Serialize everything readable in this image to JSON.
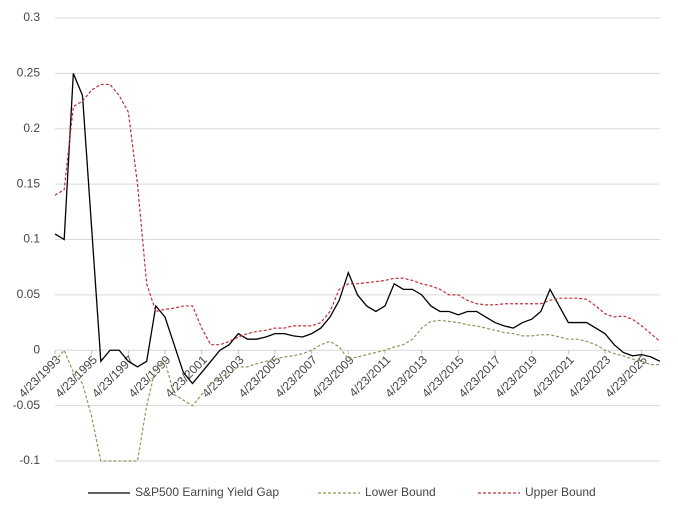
{
  "chart_data": {
    "type": "line",
    "x": [
      "4/23/1993",
      "10/23/1993",
      "4/23/1994",
      "10/23/1994",
      "4/23/1995",
      "10/23/1995",
      "4/23/1996",
      "10/23/1996",
      "4/23/1997",
      "10/23/1997",
      "4/23/1998",
      "10/23/1998",
      "4/23/1999",
      "10/23/1999",
      "4/23/2000",
      "10/23/2000",
      "4/23/2001",
      "10/23/2001",
      "4/23/2002",
      "10/23/2002",
      "4/23/2003",
      "10/23/2003",
      "4/23/2004",
      "10/23/2004",
      "4/23/2005",
      "10/23/2005",
      "4/23/2006",
      "10/23/2006",
      "4/23/2007",
      "10/23/2007",
      "4/23/2008",
      "10/23/2008",
      "4/23/2009",
      "10/23/2009",
      "4/23/2010",
      "10/23/2010",
      "4/23/2011",
      "10/23/2011",
      "4/23/2012",
      "10/23/2012",
      "4/23/2013",
      "10/23/2013",
      "4/23/2014",
      "10/23/2014",
      "4/23/2015",
      "10/23/2015",
      "4/23/2016",
      "10/23/2016",
      "4/23/2017",
      "10/23/2017",
      "4/23/2018",
      "10/23/2018",
      "4/23/2019",
      "10/23/2019",
      "4/23/2020",
      "10/23/2020",
      "4/23/2021",
      "10/23/2021",
      "4/23/2022",
      "10/23/2022",
      "4/23/2023",
      "10/23/2023",
      "4/23/2024",
      "10/23/2024",
      "4/23/2025",
      "10/23/2025",
      "4/23/2026"
    ],
    "series": [
      {
        "name": "S&P500 Earning Yield Gap",
        "color": "#000000",
        "dash": false,
        "values": [
          0.105,
          0.1,
          0.25,
          0.23,
          0.11,
          -0.01,
          0.0,
          0.0,
          -0.01,
          -0.015,
          -0.01,
          0.04,
          0.03,
          0.005,
          -0.02,
          -0.03,
          -0.02,
          -0.01,
          0.0,
          0.005,
          0.015,
          0.01,
          0.01,
          0.012,
          0.015,
          0.015,
          0.013,
          0.012,
          0.015,
          0.02,
          0.03,
          0.045,
          0.07,
          0.05,
          0.04,
          0.035,
          0.04,
          0.06,
          0.055,
          0.055,
          0.05,
          0.04,
          0.035,
          0.035,
          0.032,
          0.035,
          0.035,
          0.03,
          0.025,
          0.022,
          0.02,
          0.025,
          0.028,
          0.035,
          0.055,
          0.04,
          0.025,
          0.025,
          0.025,
          0.02,
          0.015,
          0.005,
          -0.002,
          -0.005,
          -0.004,
          -0.006,
          -0.01
        ]
      },
      {
        "name": "Lower Bound",
        "color": "#8a9a5b",
        "dash": true,
        "values": [
          -0.01,
          0.0,
          -0.02,
          -0.03,
          -0.06,
          -0.1,
          -0.1,
          -0.1,
          -0.1,
          -0.1,
          -0.05,
          -0.015,
          -0.01,
          -0.04,
          -0.045,
          -0.05,
          -0.04,
          -0.03,
          -0.025,
          -0.02,
          -0.015,
          -0.015,
          -0.012,
          -0.01,
          -0.008,
          -0.006,
          -0.005,
          -0.003,
          0.0,
          0.005,
          0.008,
          0.003,
          -0.008,
          -0.006,
          -0.004,
          -0.002,
          0.0,
          0.003,
          0.005,
          0.01,
          0.02,
          0.026,
          0.027,
          0.026,
          0.025,
          0.023,
          0.022,
          0.02,
          0.018,
          0.016,
          0.015,
          0.013,
          0.013,
          0.014,
          0.014,
          0.012,
          0.01,
          0.01,
          0.008,
          0.005,
          0.0,
          -0.003,
          -0.005,
          -0.008,
          -0.01,
          -0.013,
          -0.013
        ]
      },
      {
        "name": "Upper Bound",
        "color": "#c0303a",
        "dash": true,
        "values": [
          0.14,
          0.145,
          0.22,
          0.225,
          0.235,
          0.24,
          0.24,
          0.23,
          0.215,
          0.15,
          0.06,
          0.035,
          0.037,
          0.038,
          0.04,
          0.04,
          0.02,
          0.005,
          0.005,
          0.008,
          0.012,
          0.015,
          0.017,
          0.018,
          0.02,
          0.02,
          0.022,
          0.022,
          0.022,
          0.025,
          0.035,
          0.055,
          0.06,
          0.06,
          0.061,
          0.062,
          0.063,
          0.065,
          0.065,
          0.063,
          0.06,
          0.058,
          0.055,
          0.05,
          0.05,
          0.045,
          0.042,
          0.041,
          0.041,
          0.042,
          0.042,
          0.042,
          0.042,
          0.042,
          0.045,
          0.047,
          0.047,
          0.047,
          0.046,
          0.04,
          0.033,
          0.03,
          0.031,
          0.028,
          0.022,
          0.015,
          0.008
        ]
      }
    ],
    "xlim": [
      "4/23/1993",
      "4/23/2026"
    ],
    "xticks": [
      "4/23/1993",
      "4/23/1995",
      "4/23/1997",
      "4/23/1999",
      "4/23/2001",
      "4/23/2003",
      "4/23/2005",
      "4/23/2007",
      "4/23/2009",
      "4/23/2011",
      "4/23/2013",
      "4/23/2015",
      "4/23/2017",
      "4/23/2019",
      "4/23/2021",
      "4/23/2023",
      "4/23/2025"
    ],
    "ylim": [
      -0.1,
      0.3
    ],
    "yticks": [
      -0.1,
      -0.05,
      0,
      0.05,
      0.1,
      0.15,
      0.2,
      0.25,
      0.3
    ],
    "grid": true,
    "legend": "bottom"
  }
}
